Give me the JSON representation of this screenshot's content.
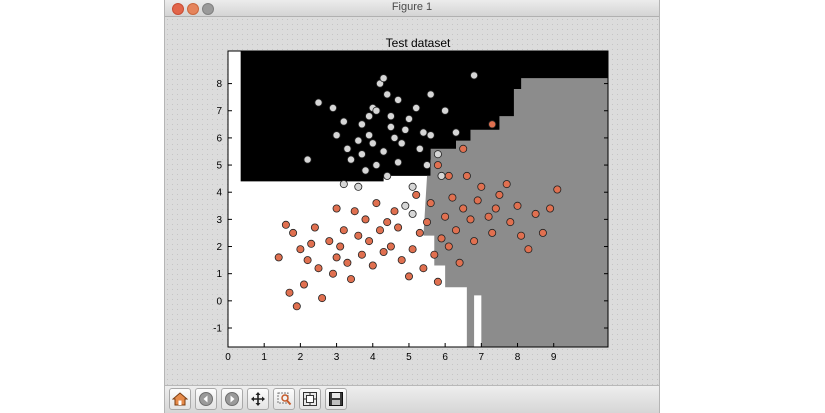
{
  "window": {
    "title": "Figure 1"
  },
  "toolbar": {
    "buttons": [
      {
        "name": "home-button",
        "icon": "home-icon"
      },
      {
        "name": "back-button",
        "icon": "back-arrow-icon"
      },
      {
        "name": "forward-button",
        "icon": "forward-arrow-icon"
      },
      {
        "name": "pan-button",
        "icon": "move-icon"
      },
      {
        "name": "zoom-button",
        "icon": "zoom-icon"
      },
      {
        "name": "subplots-button",
        "icon": "subplots-icon"
      },
      {
        "name": "save-button",
        "icon": "save-icon"
      }
    ]
  },
  "colors": {
    "class_a": "#ffffff",
    "class_b": "#000000",
    "class_c": "#8c8c8c",
    "point_light": "#d6d6d6",
    "point_orange": "#e07050"
  },
  "chart_data": {
    "type": "scatter",
    "title": "Test dataset",
    "xlabel": "",
    "ylabel": "",
    "xlim": [
      0,
      10.5
    ],
    "ylim": [
      -1.7,
      9.2
    ],
    "xticks": [
      "0",
      "1",
      "2",
      "3",
      "4",
      "5",
      "6",
      "7",
      "8",
      "9"
    ],
    "yticks": [
      "-1",
      "0",
      "1",
      "2",
      "3",
      "4",
      "5",
      "6",
      "7",
      "8"
    ],
    "grid": false,
    "legend": "none",
    "background": "decision regions (white / black / gray)",
    "series": [
      {
        "color": "light-gray",
        "points": [
          [
            2.2,
            5.2
          ],
          [
            2.5,
            7.3
          ],
          [
            2.9,
            7.1
          ],
          [
            3.0,
            6.1
          ],
          [
            3.2,
            6.6
          ],
          [
            3.3,
            5.6
          ],
          [
            3.6,
            5.9
          ],
          [
            3.7,
            5.4
          ],
          [
            3.9,
            6.1
          ],
          [
            4.0,
            7.1
          ],
          [
            4.2,
            8.0
          ],
          [
            4.3,
            8.2
          ],
          [
            4.4,
            7.6
          ],
          [
            4.5,
            6.8
          ],
          [
            4.6,
            6.0
          ],
          [
            4.3,
            5.5
          ],
          [
            4.1,
            5.0
          ],
          [
            3.8,
            4.8
          ],
          [
            4.7,
            5.1
          ],
          [
            4.9,
            6.3
          ],
          [
            5.0,
            6.7
          ],
          [
            5.2,
            7.1
          ],
          [
            5.3,
            5.6
          ],
          [
            5.6,
            7.6
          ],
          [
            5.4,
            6.2
          ],
          [
            5.8,
            5.4
          ],
          [
            5.9,
            4.6
          ],
          [
            6.3,
            6.2
          ],
          [
            6.8,
            8.3
          ],
          [
            5.1,
            4.2
          ],
          [
            4.9,
            3.5
          ],
          [
            5.1,
            3.2
          ],
          [
            3.2,
            4.3
          ],
          [
            3.6,
            4.2
          ],
          [
            4.8,
            5.8
          ],
          [
            4.5,
            6.4
          ],
          [
            4.0,
            5.8
          ],
          [
            3.7,
            6.5
          ],
          [
            5.5,
            5.0
          ],
          [
            4.1,
            7.0
          ],
          [
            3.4,
            5.2
          ],
          [
            4.7,
            7.4
          ],
          [
            5.6,
            6.1
          ],
          [
            6.0,
            7.0
          ],
          [
            4.4,
            4.6
          ],
          [
            3.9,
            6.8
          ]
        ]
      },
      {
        "color": "orange",
        "points": [
          [
            1.4,
            1.6
          ],
          [
            1.6,
            2.8
          ],
          [
            1.7,
            0.3
          ],
          [
            1.8,
            2.5
          ],
          [
            1.9,
            -0.2
          ],
          [
            2.0,
            1.9
          ],
          [
            2.1,
            0.6
          ],
          [
            2.2,
            1.5
          ],
          [
            2.4,
            2.7
          ],
          [
            2.5,
            1.2
          ],
          [
            2.6,
            0.1
          ],
          [
            2.8,
            2.2
          ],
          [
            2.9,
            1.0
          ],
          [
            3.0,
            3.4
          ],
          [
            3.1,
            2.0
          ],
          [
            3.2,
            2.6
          ],
          [
            3.3,
            1.4
          ],
          [
            3.4,
            0.8
          ],
          [
            3.5,
            3.3
          ],
          [
            3.6,
            2.4
          ],
          [
            3.7,
            1.7
          ],
          [
            3.8,
            3.0
          ],
          [
            3.9,
            2.2
          ],
          [
            4.0,
            1.3
          ],
          [
            4.1,
            3.6
          ],
          [
            4.2,
            2.6
          ],
          [
            4.3,
            1.8
          ],
          [
            4.4,
            2.9
          ],
          [
            4.5,
            2.0
          ],
          [
            4.6,
            3.3
          ],
          [
            4.7,
            2.7
          ],
          [
            4.8,
            1.5
          ],
          [
            5.0,
            0.9
          ],
          [
            5.1,
            1.9
          ],
          [
            5.3,
            2.5
          ],
          [
            5.4,
            1.2
          ],
          [
            5.5,
            2.9
          ],
          [
            5.6,
            3.6
          ],
          [
            5.7,
            1.7
          ],
          [
            5.8,
            0.7
          ],
          [
            5.9,
            2.3
          ],
          [
            6.0,
            3.1
          ],
          [
            6.1,
            2.0
          ],
          [
            6.2,
            3.8
          ],
          [
            6.3,
            2.6
          ],
          [
            6.4,
            1.4
          ],
          [
            6.5,
            3.4
          ],
          [
            6.6,
            4.6
          ],
          [
            6.8,
            2.2
          ],
          [
            6.9,
            3.7
          ],
          [
            7.0,
            4.2
          ],
          [
            7.2,
            3.1
          ],
          [
            7.3,
            2.5
          ],
          [
            7.5,
            3.9
          ],
          [
            7.7,
            4.3
          ],
          [
            7.8,
            2.9
          ],
          [
            8.0,
            3.5
          ],
          [
            8.1,
            2.4
          ],
          [
            8.3,
            1.9
          ],
          [
            8.5,
            3.2
          ],
          [
            8.7,
            2.5
          ],
          [
            8.9,
            3.4
          ],
          [
            9.1,
            4.1
          ],
          [
            6.7,
            3.0
          ],
          [
            7.4,
            3.4
          ],
          [
            2.3,
            2.1
          ],
          [
            3.0,
            1.6
          ],
          [
            5.2,
            3.9
          ],
          [
            6.5,
            5.6
          ],
          [
            7.3,
            6.5
          ],
          [
            5.8,
            5.0
          ],
          [
            6.1,
            4.6
          ]
        ]
      }
    ]
  }
}
